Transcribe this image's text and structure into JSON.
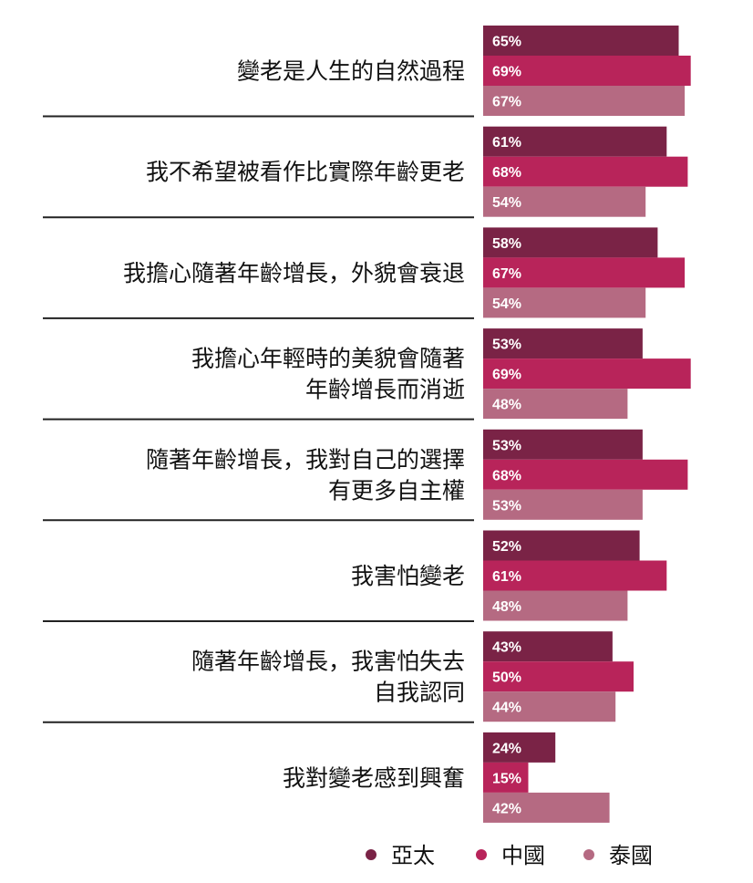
{
  "chart_data": {
    "type": "bar",
    "orientation": "horizontal",
    "categories": [
      [
        "變老是人生的自然過程"
      ],
      [
        "我不希望被看作比實際年齡更老"
      ],
      [
        "我擔心隨著年齡增長，外貌會衰退"
      ],
      [
        "我擔心年輕時的美貌會隨著",
        "年齡增長而消逝"
      ],
      [
        "隨著年齡增長，我對自己的選擇",
        "有更多自主權"
      ],
      [
        "我害怕變老"
      ],
      [
        "隨著年齡增長，我害怕失去",
        "自我認同"
      ],
      [
        "我對變老感到興奮"
      ]
    ],
    "series": [
      {
        "name": "亞太",
        "color": "#7a2346",
        "values": [
          65,
          61,
          58,
          53,
          53,
          52,
          43,
          24
        ]
      },
      {
        "name": "中國",
        "color": "#b8245a",
        "values": [
          69,
          68,
          67,
          69,
          68,
          61,
          50,
          15
        ]
      },
      {
        "name": "泰國",
        "color": "#b56a82",
        "values": [
          67,
          54,
          54,
          48,
          53,
          48,
          44,
          42
        ]
      }
    ],
    "value_suffix": "%",
    "legend_position": "bottom-right",
    "grid": false
  }
}
